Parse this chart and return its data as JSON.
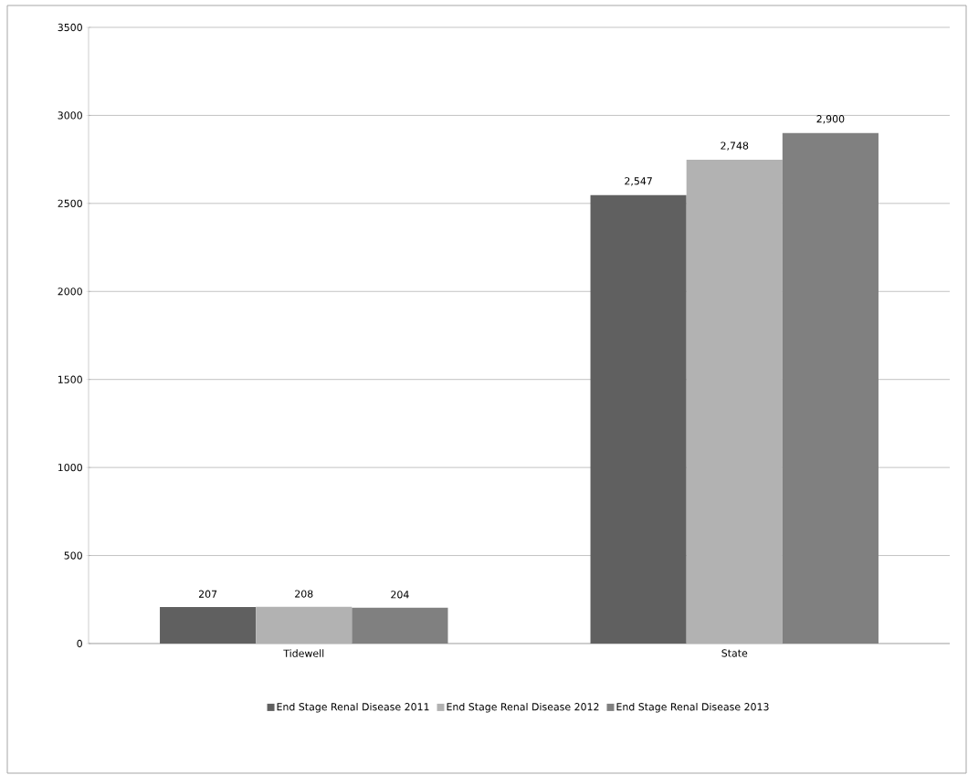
{
  "chart_data": {
    "type": "bar",
    "categories": [
      "Tidewell",
      "State"
    ],
    "series": [
      {
        "name": "End Stage Renal Disease 2011",
        "color": "#606060",
        "values": [
          207,
          2547
        ],
        "value_labels": [
          "207",
          "2,547"
        ]
      },
      {
        "name": "End Stage Renal Disease 2012",
        "color": "#b2b2b2",
        "values": [
          208,
          2748
        ],
        "value_labels": [
          "208",
          "2,748"
        ]
      },
      {
        "name": "End Stage Renal Disease 2013",
        "color": "#808080",
        "values": [
          204,
          2900
        ],
        "value_labels": [
          "204",
          "2,900"
        ]
      }
    ],
    "ylim": [
      0,
      3500
    ],
    "yticks": [
      0,
      500,
      1000,
      1500,
      2000,
      2500,
      3000,
      3500
    ],
    "grid": "y",
    "legend": "bottom"
  }
}
